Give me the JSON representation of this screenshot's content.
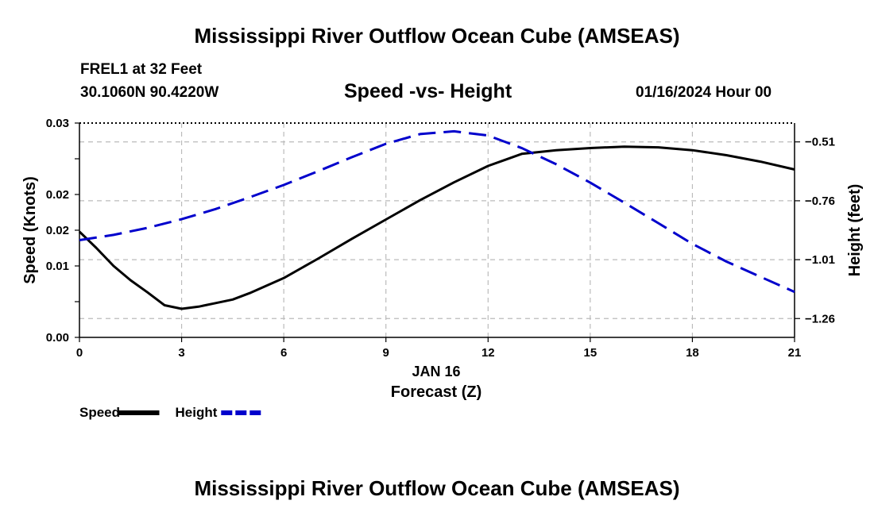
{
  "page": {
    "title_top": "Mississippi River Outflow Ocean Cube (AMSEAS)",
    "title_bottom": "Mississippi River Outflow Ocean Cube (AMSEAS)",
    "station": "FREL1 at 32 Feet",
    "coordinates": "30.1060N  90.4220W",
    "subtitle": "Speed -vs- Height",
    "datetime": "01/16/2024 Hour 00"
  },
  "chart_data": {
    "type": "line",
    "title": "Speed -vs- Height",
    "xlabel": "Forecast (Z)",
    "xdate_label": "JAN 16",
    "ylabel_left": "Speed (Knots)",
    "ylabel_right": "Height (feet)",
    "xlim": [
      0,
      21
    ],
    "ylim_left": [
      0,
      0.03
    ],
    "ylim_right": [
      -1.34,
      -0.43
    ],
    "x_ticks": [
      0,
      3,
      6,
      9,
      12,
      15,
      18,
      21
    ],
    "x_tick_labels": [
      "0",
      "3",
      "6",
      "9",
      "12",
      "15",
      "18",
      "21"
    ],
    "y_left_ticks": [
      0,
      0.005,
      0.01,
      0.015,
      0.02,
      0.025,
      0.03
    ],
    "y_left_tick_labels": [
      "0.00",
      "0.01",
      "0.02",
      "0.03"
    ],
    "y_left_labeled_ticks": [
      0,
      0.01,
      0.015,
      0.02,
      0.03
    ],
    "y_left_labels_text": [
      "0.00",
      "0.01",
      "0.02",
      "0.02",
      "0.03"
    ],
    "y_right_ticks": [
      -1.26,
      -1.01,
      -0.76,
      -0.51
    ],
    "y_right_tick_labels": [
      "−1.26",
      "−1.01",
      "−0.76",
      "−0.51"
    ],
    "grid": true,
    "legend_position": "bottom-left",
    "series": [
      {
        "name": "Speed",
        "axis": "left",
        "color": "#000000",
        "style": "solid",
        "x": [
          0,
          0.5,
          1,
          1.5,
          2,
          2.5,
          3,
          3.5,
          4,
          4.5,
          5,
          6,
          7,
          8,
          9,
          10,
          11,
          12,
          13,
          14,
          15,
          16,
          17,
          18,
          19,
          20,
          21
        ],
        "values": [
          0.0148,
          0.0125,
          0.01,
          0.008,
          0.0063,
          0.0045,
          0.004,
          0.0043,
          0.0048,
          0.0053,
          0.0062,
          0.0083,
          0.011,
          0.0138,
          0.0165,
          0.0192,
          0.0217,
          0.024,
          0.0257,
          0.0262,
          0.0265,
          0.0267,
          0.0266,
          0.0262,
          0.0255,
          0.0246,
          0.0235
        ]
      },
      {
        "name": "Height",
        "axis": "right",
        "color": "#0000cc",
        "style": "dashed",
        "x": [
          0,
          1,
          2,
          3,
          4,
          5,
          6,
          7,
          8,
          9,
          10,
          11,
          12,
          13,
          14,
          15,
          16,
          17,
          18,
          19,
          20,
          21
        ],
        "values": [
          -0.927,
          -0.905,
          -0.875,
          -0.838,
          -0.795,
          -0.745,
          -0.693,
          -0.635,
          -0.575,
          -0.518,
          -0.477,
          -0.465,
          -0.483,
          -0.537,
          -0.605,
          -0.683,
          -0.768,
          -0.855,
          -0.943,
          -1.018,
          -1.083,
          -1.147
        ]
      }
    ]
  }
}
